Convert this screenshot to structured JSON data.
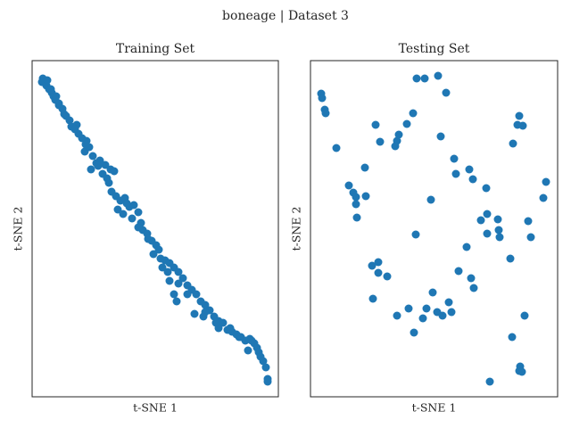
{
  "title": "boneage | Dataset 3",
  "chart_data": [
    {
      "type": "scatter",
      "title": "Training Set",
      "xlabel": "t-SNE 1",
      "ylabel": "t-SNE 2",
      "color": "#1f77b4",
      "xlim": [
        0,
        276
      ],
      "ylim": [
        0,
        377
      ],
      "x": [
        12,
        14,
        16,
        19,
        22,
        24,
        26,
        30,
        34,
        36,
        42,
        44,
        50,
        52,
        56,
        61,
        59,
        64,
        68,
        72,
        66,
        76,
        82,
        88,
        92,
        79,
        84,
        89,
        94,
        99,
        104,
        96,
        102,
        109,
        114,
        112,
        119,
        122,
        124,
        129,
        134,
        139,
        136,
        144,
        149,
        154,
        152,
        159,
        164,
        169,
        154,
        162,
        159,
        174,
        179,
        184,
        189,
        194,
        182,
        192,
        199,
        204,
        209,
        214,
        209,
        219,
        224,
        229,
        234,
        239,
        244,
        249,
        252,
        242,
        254,
        256,
        259,
        262,
        264,
        264,
        11,
        17,
        21,
        27,
        30,
        38,
        48,
        60,
        74,
        86,
        106,
        119,
        130,
        142,
        146,
        164,
        174,
        194,
        206,
        222,
        232,
        246
      ],
      "y": [
        357,
        353,
        349,
        345,
        341,
        337,
        333,
        327,
        323,
        317,
        310,
        303,
        305,
        295,
        290,
        287,
        275,
        280,
        270,
        262,
        255,
        265,
        260,
        255,
        253,
        250,
        245,
        230,
        225,
        220,
        223,
        210,
        205,
        213,
        215,
        200,
        207,
        195,
        187,
        183,
        175,
        170,
        160,
        155,
        153,
        150,
        140,
        145,
        140,
        133,
        130,
        107,
        115,
        125,
        120,
        115,
        107,
        103,
        93,
        90,
        97,
        90,
        85,
        83,
        77,
        75,
        73,
        70,
        67,
        63,
        65,
        60,
        55,
        52,
        50,
        45,
        40,
        33,
        20,
        17,
        353,
        355,
        345,
        337,
        329,
        315,
        300,
        283,
        259,
        240,
        217,
        190,
        177,
        165,
        145,
        127,
        115,
        95,
        83,
        77,
        67,
        63
      ]
    },
    {
      "type": "scatter",
      "title": "Testing Set",
      "xlabel": "t-SNE 1",
      "ylabel": "t-SNE 2",
      "color": "#1f77b4",
      "xlim": [
        0,
        277
      ],
      "ylim": [
        0,
        377
      ],
      "x": [
        12,
        13,
        16,
        17,
        29,
        119,
        128,
        143,
        152,
        115,
        73,
        108,
        99,
        97,
        95,
        78,
        146,
        234,
        232,
        238,
        227,
        61,
        43,
        48,
        51,
        62,
        51,
        52,
        161,
        178,
        163,
        182,
        197,
        264,
        261,
        135,
        198,
        191,
        210,
        244,
        198,
        211,
        212,
        247,
        118,
        175,
        76,
        69,
        76,
        86,
        166,
        180,
        183,
        224,
        137,
        70,
        155,
        110,
        130,
        142,
        97,
        126,
        148,
        158,
        240,
        116,
        226,
        235,
        234,
        237,
        201
      ],
      "y": [
        340,
        335,
        322,
        318,
        279,
        357,
        357,
        360,
        341,
        318,
        305,
        306,
        294,
        287,
        281,
        286,
        292,
        315,
        305,
        304,
        284,
        257,
        237,
        229,
        224,
        225,
        216,
        201,
        267,
        255,
        250,
        244,
        234,
        241,
        223,
        221,
        205,
        198,
        199,
        197,
        183,
        187,
        179,
        179,
        182,
        168,
        151,
        147,
        139,
        135,
        141,
        133,
        122,
        155,
        117,
        110,
        106,
        99,
        99,
        95,
        91,
        88,
        91,
        95,
        91,
        72,
        67,
        34,
        29,
        28,
        17
      ]
    }
  ]
}
